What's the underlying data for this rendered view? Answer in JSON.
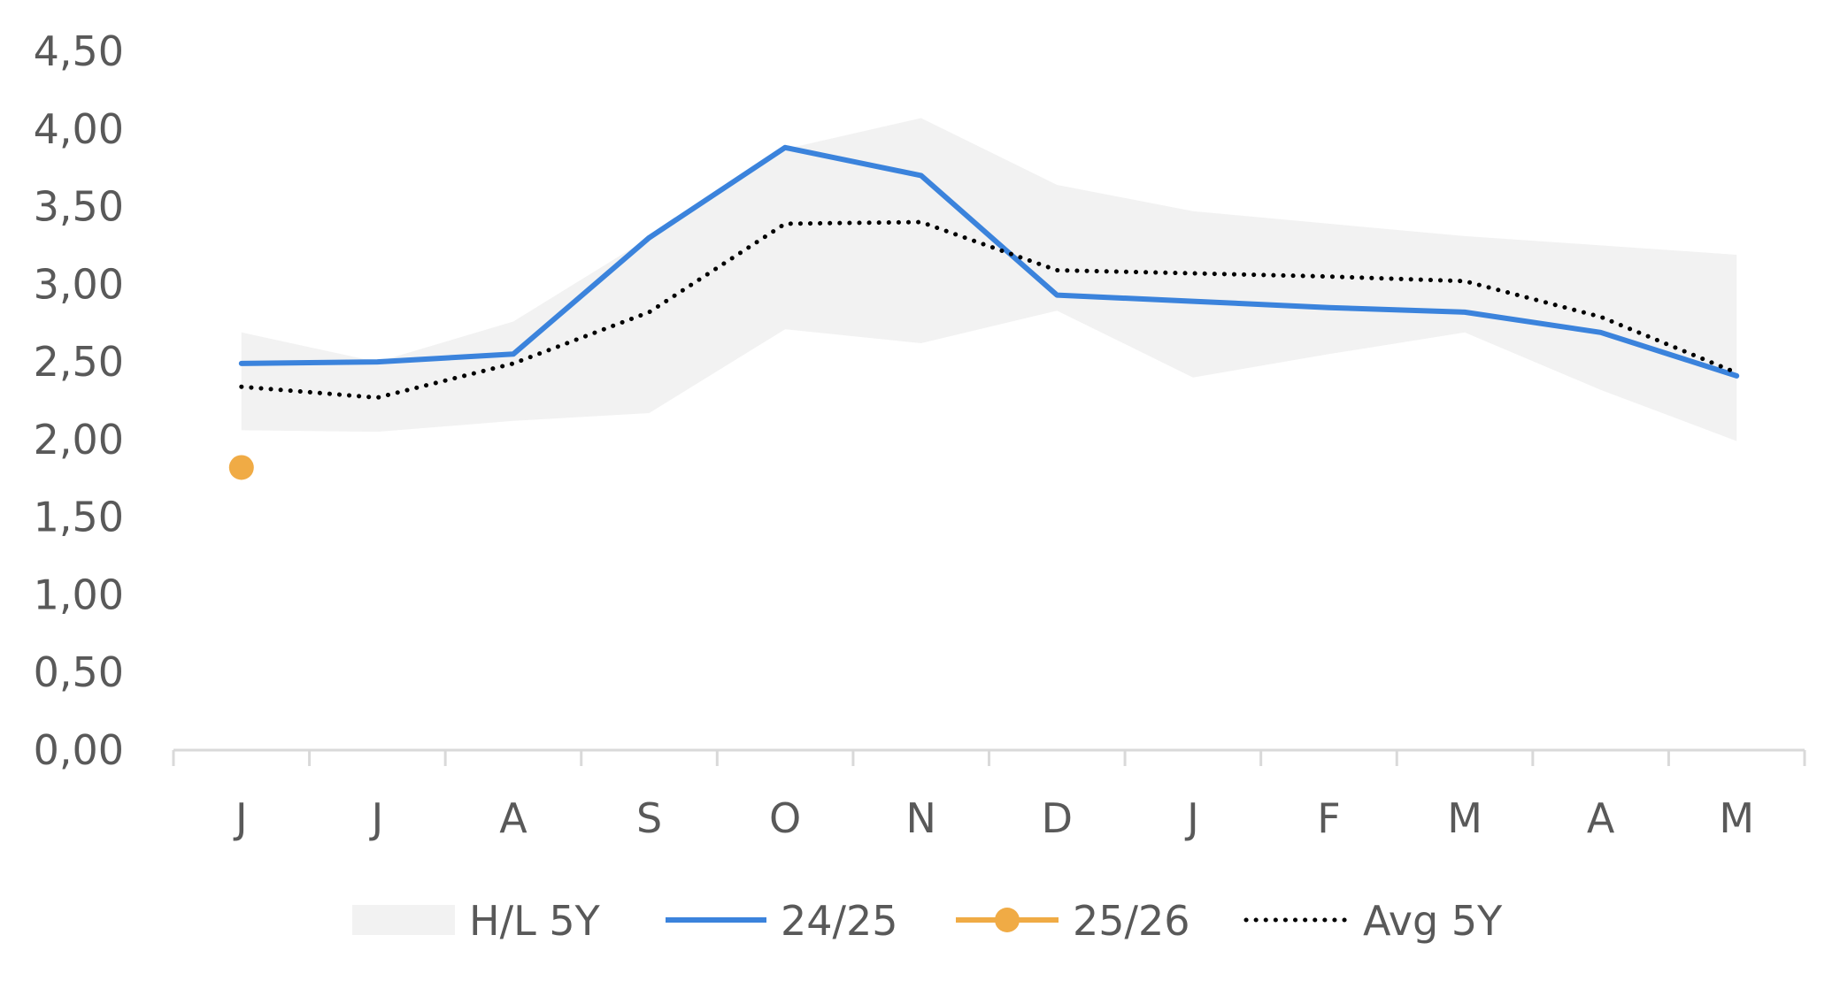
{
  "chart_data": {
    "type": "line",
    "categories": [
      "J",
      "J",
      "A",
      "S",
      "O",
      "N",
      "D",
      "J",
      "F",
      "M",
      "A",
      "M"
    ],
    "ylim": [
      0,
      4.5
    ],
    "yticks": [
      "0,00",
      "0,50",
      "1,00",
      "1,50",
      "2,00",
      "2,50",
      "3,00",
      "3,50",
      "4,00",
      "4,50"
    ],
    "ytick_values": [
      0,
      0.5,
      1,
      1.5,
      2,
      2.5,
      3,
      3.5,
      4,
      4.5
    ],
    "grid": false,
    "legend_position": "bottom",
    "band": {
      "name": "H/L 5Y",
      "color": "#f2f2f2",
      "high": [
        2.69,
        2.5,
        2.76,
        3.3,
        3.87,
        4.07,
        3.64,
        3.47,
        3.39,
        3.31,
        3.25,
        3.19
      ],
      "low": [
        2.06,
        2.05,
        2.12,
        2.17,
        2.71,
        2.62,
        2.83,
        2.4,
        2.55,
        2.69,
        2.32,
        1.99
      ],
      "step_at": 6,
      "low_before_step": 2.83,
      "high_before_step": 3.64
    },
    "series": [
      {
        "name": "24/25",
        "color": "#3b83dc",
        "style": "solid",
        "values": [
          2.49,
          2.5,
          2.55,
          3.3,
          3.88,
          3.7,
          2.93,
          2.89,
          2.85,
          2.82,
          2.69,
          2.41
        ]
      },
      {
        "name": "25/26",
        "color": "#f0ab45",
        "style": "marker",
        "values": [
          1.82,
          null,
          null,
          null,
          null,
          null,
          null,
          null,
          null,
          null,
          null,
          null
        ]
      },
      {
        "name": "Avg 5Y",
        "color": "#000000",
        "style": "dotted",
        "values": [
          2.34,
          2.27,
          2.49,
          2.82,
          3.39,
          3.4,
          3.09,
          3.07,
          3.05,
          3.02,
          2.79,
          2.43
        ]
      }
    ],
    "legend": [
      "H/L 5Y",
      "24/25",
      "25/26",
      "Avg 5Y"
    ]
  }
}
